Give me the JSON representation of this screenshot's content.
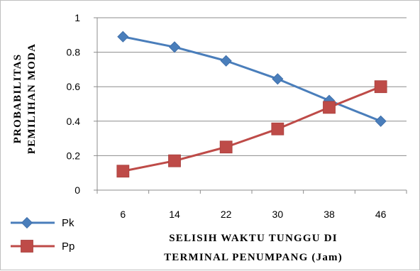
{
  "chart_data": {
    "type": "line",
    "title": "",
    "x": [
      6,
      14,
      22,
      30,
      38,
      46
    ],
    "ylim": [
      0,
      1
    ],
    "yticks": [
      "0",
      "0.2",
      "0.4",
      "0.6",
      "0.8",
      "1"
    ],
    "ylabel_lines": [
      "PROBABILITAS",
      "PEMILIHAN MODA"
    ],
    "xlabel_lines": [
      "SELISIH WAKTU TUNGGU DI",
      "TERMINAL PENUMPANG  (Jam)"
    ],
    "grid": true,
    "legend_position": "bottom-left",
    "series": [
      {
        "name": "Pk",
        "color": "#4a7ebb",
        "marker": "diamond",
        "values": [
          0.89,
          0.83,
          0.75,
          0.645,
          0.52,
          0.4
        ]
      },
      {
        "name": "Pp",
        "color": "#be4b48",
        "marker": "square",
        "values": [
          0.11,
          0.17,
          0.25,
          0.355,
          0.48,
          0.6
        ]
      }
    ]
  }
}
